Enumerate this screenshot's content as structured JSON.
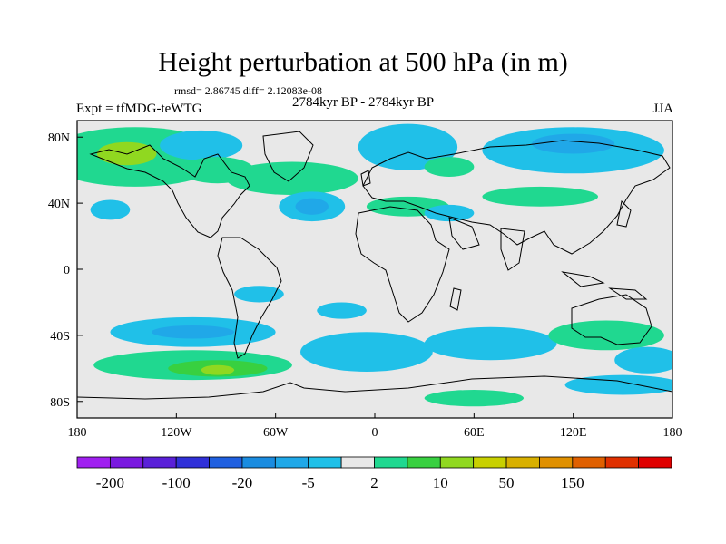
{
  "title": "Height perturbation at 500 hPa (in m)",
  "stats_text": "rmsd= 2.86745 diff= 2.12083e-08",
  "period": "2784kyr BP - 2784kyr BP",
  "experiment": "Expt = tfMDG-teWTG",
  "season": "JJA",
  "chart_data": {
    "type": "contour-map",
    "variable": "500 hPa geopotential height perturbation (m)",
    "xaxis": {
      "range": [
        -180,
        180
      ],
      "ticks": [
        {
          "value": -180,
          "label": "180"
        },
        {
          "value": -120,
          "label": "120W"
        },
        {
          "value": -60,
          "label": "60W"
        },
        {
          "value": 0,
          "label": "0"
        },
        {
          "value": 60,
          "label": "60E"
        },
        {
          "value": 120,
          "label": "120E"
        },
        {
          "value": 180,
          "label": "180"
        }
      ]
    },
    "yaxis": {
      "range": [
        -90,
        90
      ],
      "ticks": [
        {
          "value": 80,
          "label": "80N"
        },
        {
          "value": 40,
          "label": "40N"
        },
        {
          "value": 0,
          "label": "0"
        },
        {
          "value": -40,
          "label": "40S"
        },
        {
          "value": -80,
          "label": "80S"
        }
      ]
    },
    "colorbar": {
      "colors": [
        "#a020f0",
        "#7a19e0",
        "#5a20d8",
        "#3030d8",
        "#2060e0",
        "#1a8ce0",
        "#20a8e8",
        "#20c0e8",
        "#e8e8e8",
        "#20d890",
        "#38d040",
        "#90d820",
        "#c8d000",
        "#d8b000",
        "#e09000",
        "#e06000",
        "#e03000",
        "#e00000"
      ],
      "labels": [
        {
          "value": "-200",
          "after_box": 1
        },
        {
          "value": "-100",
          "after_box": 3
        },
        {
          "value": "-20",
          "after_box": 5
        },
        {
          "value": "-5",
          "after_box": 7
        },
        {
          "value": "2",
          "after_box": 9
        },
        {
          "value": "10",
          "after_box": 11
        },
        {
          "value": "50",
          "after_box": 13
        },
        {
          "value": "150",
          "after_box": 15
        }
      ]
    },
    "regions": [
      {
        "name": "n-pacific-high",
        "lon": -145,
        "lat": 68,
        "rlon": 55,
        "rlat": 18,
        "color": "#20d890"
      },
      {
        "name": "alaska-core",
        "lon": -150,
        "lat": 70,
        "rlon": 18,
        "rlat": 7,
        "color": "#90d820"
      },
      {
        "name": "arctic-low-1",
        "lon": -105,
        "lat": 75,
        "rlon": 25,
        "rlat": 9,
        "color": "#20c0e8"
      },
      {
        "name": "canada-green",
        "lon": -95,
        "lat": 60,
        "rlon": 22,
        "rlat": 8,
        "color": "#20d890"
      },
      {
        "name": "n-atlantic-green",
        "lon": -50,
        "lat": 55,
        "rlon": 40,
        "rlat": 10,
        "color": "#20d890"
      },
      {
        "name": "n-atlantic-blue",
        "lon": -38,
        "lat": 38,
        "rlon": 20,
        "rlat": 9,
        "color": "#20c0e8"
      },
      {
        "name": "n-atlantic-blue-core",
        "lon": -38,
        "lat": 38,
        "rlon": 10,
        "rlat": 5,
        "color": "#20a8e8"
      },
      {
        "name": "n-pacific-blue",
        "lon": -160,
        "lat": 36,
        "rlon": 12,
        "rlat": 6,
        "color": "#20c0e8"
      },
      {
        "name": "arctic-blue-eurasia",
        "lon": 20,
        "lat": 74,
        "rlon": 30,
        "rlat": 14,
        "color": "#20c0e8"
      },
      {
        "name": "europe-green",
        "lon": 45,
        "lat": 62,
        "rlon": 15,
        "rlat": 6,
        "color": "#20d890"
      },
      {
        "name": "siberia-blue",
        "lon": 120,
        "lat": 72,
        "rlon": 55,
        "rlat": 14,
        "color": "#20c0e8"
      },
      {
        "name": "siberia-core",
        "lon": 120,
        "lat": 76,
        "rlon": 25,
        "rlat": 6,
        "color": "#20a8e8"
      },
      {
        "name": "asia-green",
        "lon": 100,
        "lat": 44,
        "rlon": 35,
        "rlat": 6,
        "color": "#20d890"
      },
      {
        "name": "mideast-green",
        "lon": 20,
        "lat": 38,
        "rlon": 25,
        "rlat": 6,
        "color": "#20d890"
      },
      {
        "name": "mideast-blue",
        "lon": 45,
        "lat": 34,
        "rlon": 15,
        "rlat": 5,
        "color": "#20c0e8"
      },
      {
        "name": "s-pacific-blue",
        "lon": -110,
        "lat": -38,
        "rlon": 50,
        "rlat": 9,
        "color": "#20c0e8"
      },
      {
        "name": "s-pacific-blue-core",
        "lon": -110,
        "lat": -38,
        "rlon": 25,
        "rlat": 4,
        "color": "#20a8e8"
      },
      {
        "name": "s-pacific-green",
        "lon": -110,
        "lat": -58,
        "rlon": 60,
        "rlat": 9,
        "color": "#20d890"
      },
      {
        "name": "s-pacific-green-core",
        "lon": -95,
        "lat": -60,
        "rlon": 30,
        "rlat": 5,
        "color": "#38d040"
      },
      {
        "name": "s-pacific-yellow",
        "lon": -95,
        "lat": -61,
        "rlon": 10,
        "rlat": 3,
        "color": "#90d820"
      },
      {
        "name": "s-atlantic-blue",
        "lon": -5,
        "lat": -50,
        "rlon": 40,
        "rlat": 12,
        "color": "#20c0e8"
      },
      {
        "name": "s-indian-blue",
        "lon": 70,
        "lat": -45,
        "rlon": 40,
        "rlat": 10,
        "color": "#20c0e8"
      },
      {
        "name": "australia-green",
        "lon": 140,
        "lat": -40,
        "rlon": 35,
        "rlat": 9,
        "color": "#20d890"
      },
      {
        "name": "sw-pacific-blue",
        "lon": 165,
        "lat": -55,
        "rlon": 20,
        "rlat": 8,
        "color": "#20c0e8"
      },
      {
        "name": "antarctic-green",
        "lon": 60,
        "lat": -78,
        "rlon": 30,
        "rlat": 5,
        "color": "#20d890"
      },
      {
        "name": "antarctic-blue",
        "lon": 150,
        "lat": -70,
        "rlon": 35,
        "rlat": 6,
        "color": "#20c0e8"
      },
      {
        "name": "tropics-blue",
        "lon": -20,
        "lat": -25,
        "rlon": 15,
        "rlat": 5,
        "color": "#20c0e8"
      },
      {
        "name": "se-pacific-blue",
        "lon": -70,
        "lat": -15,
        "rlon": 15,
        "rlat": 5,
        "color": "#20c0e8"
      }
    ]
  }
}
